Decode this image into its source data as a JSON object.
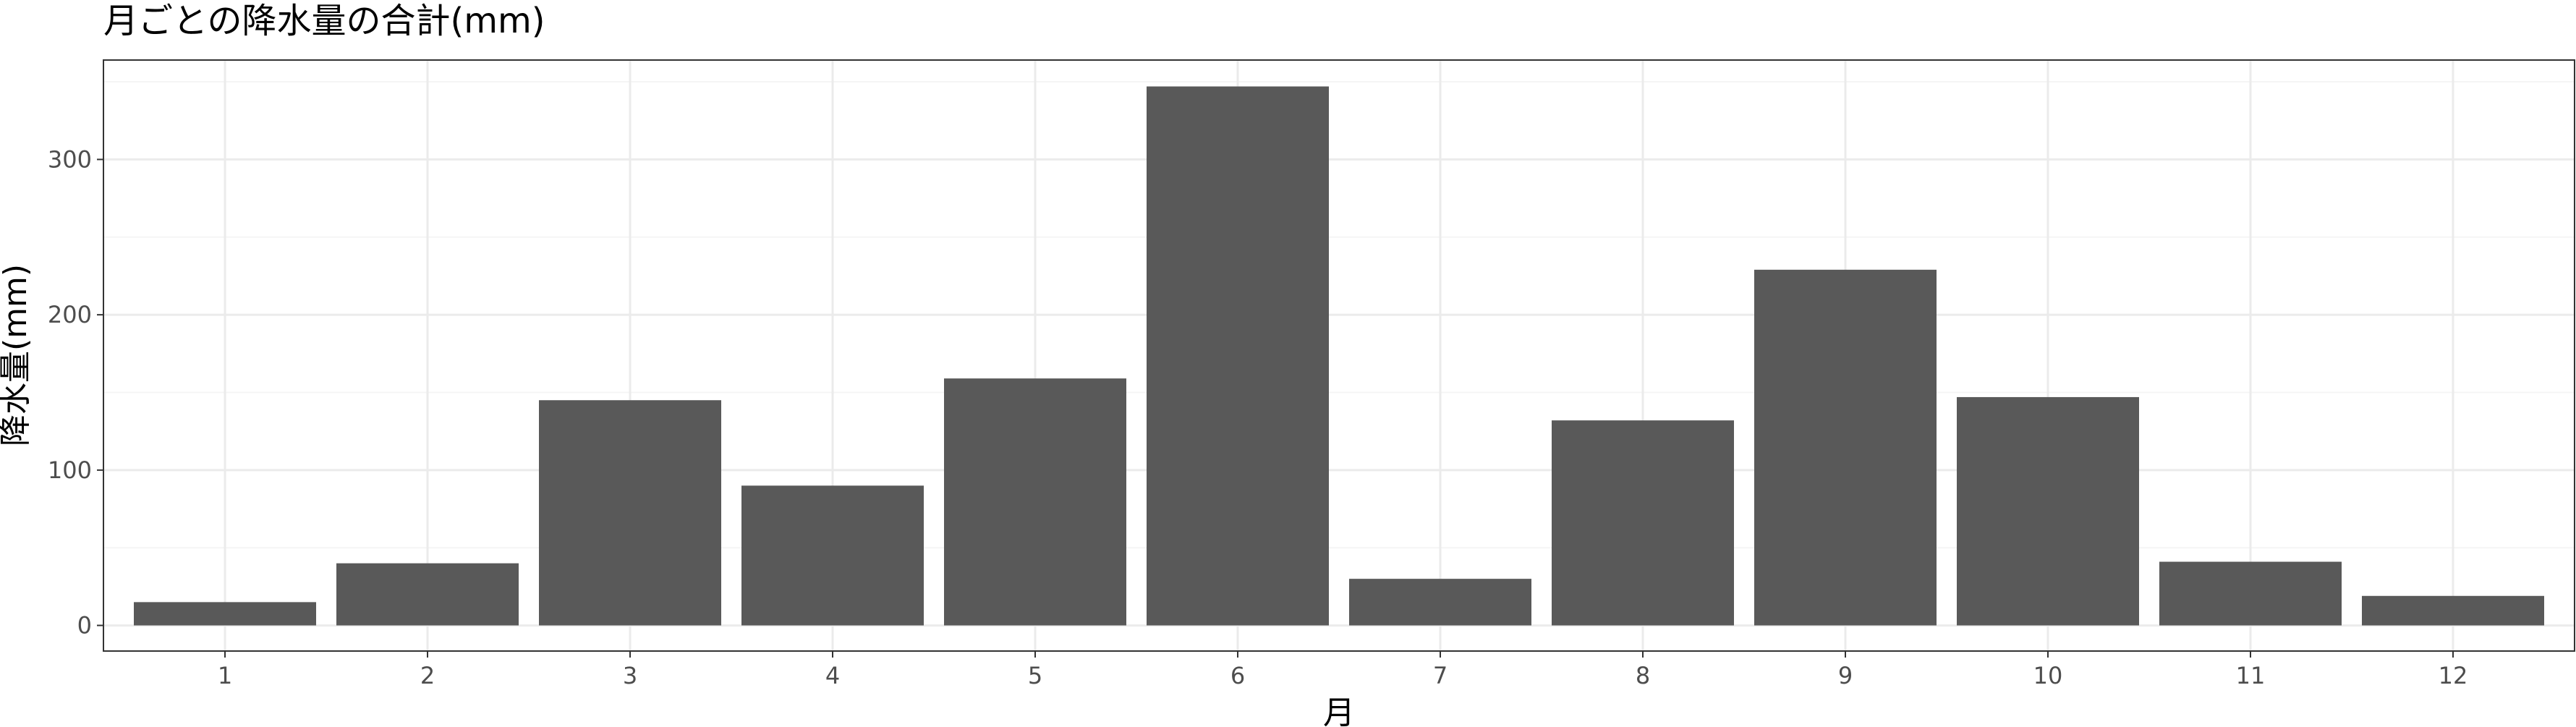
{
  "chart_data": {
    "type": "bar",
    "title": "月ごとの降水量の合計(mm)",
    "xlabel": "月",
    "ylabel": "降水量(mm)",
    "categories": [
      "1",
      "2",
      "3",
      "4",
      "5",
      "6",
      "7",
      "8",
      "9",
      "10",
      "11",
      "12"
    ],
    "values": [
      15,
      40,
      145,
      90,
      159,
      347,
      30,
      132,
      229,
      147,
      41,
      19
    ],
    "ylim": [
      -16.5,
      364
    ],
    "yticks": [
      0,
      100,
      200,
      300
    ],
    "grid": true,
    "colors": {
      "bar": "#595959",
      "grid_major": "#ebebeb",
      "grid_minor": "#f5f5f5",
      "panel_border": "#333333",
      "tick_text": "#4d4d4d"
    }
  }
}
